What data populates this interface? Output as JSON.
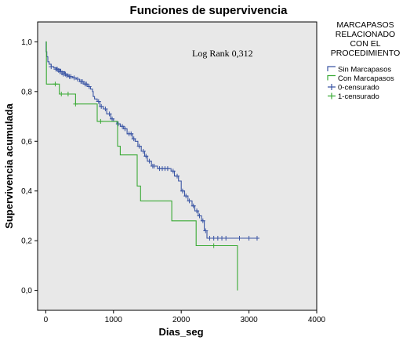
{
  "chart_data": {
    "type": "line",
    "title": "Funciones de supervivencia",
    "xlabel": "Dias_seg",
    "ylabel": "Supervivencia acumulada",
    "xlim": [
      -120,
      4000
    ],
    "ylim": [
      -0.08,
      1.08
    ],
    "xticks": [
      0,
      1000,
      2000,
      3000,
      4000
    ],
    "xtick_labels": [
      "0",
      "1000",
      "2000",
      "3000",
      "4000"
    ],
    "yticks": [
      0.0,
      0.2,
      0.4,
      0.6,
      0.8,
      1.0
    ],
    "ytick_labels": [
      "0,0",
      "0,2",
      "0,4",
      "0,6",
      "0,8",
      "1,0"
    ],
    "grid": false,
    "annotation": "Log Rank 0,312",
    "legend": {
      "position": "right",
      "title_lines": [
        "MARCAPASOS",
        "RELACIONADO",
        "CON EL",
        "PROCEDIMIENTO"
      ],
      "entries": [
        {
          "label": "Sin Marcapasos",
          "kind": "step",
          "color": "#3a55a4"
        },
        {
          "label": "Con Marcapasos",
          "kind": "step",
          "color": "#3aaa35"
        },
        {
          "label": "0-censurado",
          "kind": "cross",
          "color": "#3a55a4"
        },
        {
          "label": "1-censurado",
          "kind": "cross",
          "color": "#3aaa35"
        }
      ]
    },
    "colors": {
      "background": "#e8e8e8",
      "sin": "#3a55a4",
      "con": "#3aaa35"
    },
    "series": [
      {
        "name": "Sin Marcapasos",
        "color": "#3a55a4",
        "steps": [
          [
            0,
            1.0
          ],
          [
            5,
            0.96
          ],
          [
            15,
            0.94
          ],
          [
            30,
            0.92
          ],
          [
            50,
            0.91
          ],
          [
            80,
            0.9
          ],
          [
            120,
            0.895
          ],
          [
            160,
            0.89
          ],
          [
            220,
            0.88
          ],
          [
            280,
            0.87
          ],
          [
            330,
            0.86
          ],
          [
            400,
            0.855
          ],
          [
            450,
            0.85
          ],
          [
            500,
            0.84
          ],
          [
            560,
            0.83
          ],
          [
            620,
            0.82
          ],
          [
            660,
            0.81
          ],
          [
            690,
            0.8
          ],
          [
            700,
            0.78
          ],
          [
            720,
            0.77
          ],
          [
            760,
            0.76
          ],
          [
            800,
            0.74
          ],
          [
            850,
            0.73
          ],
          [
            900,
            0.71
          ],
          [
            960,
            0.69
          ],
          [
            1000,
            0.68
          ],
          [
            1050,
            0.67
          ],
          [
            1100,
            0.66
          ],
          [
            1150,
            0.65
          ],
          [
            1200,
            0.63
          ],
          [
            1280,
            0.61
          ],
          [
            1320,
            0.6
          ],
          [
            1360,
            0.58
          ],
          [
            1410,
            0.56
          ],
          [
            1460,
            0.54
          ],
          [
            1500,
            0.52
          ],
          [
            1560,
            0.5
          ],
          [
            1650,
            0.49
          ],
          [
            1850,
            0.48
          ],
          [
            1900,
            0.46
          ],
          [
            1960,
            0.44
          ],
          [
            2000,
            0.4
          ],
          [
            2050,
            0.38
          ],
          [
            2100,
            0.36
          ],
          [
            2160,
            0.34
          ],
          [
            2200,
            0.32
          ],
          [
            2250,
            0.3
          ],
          [
            2300,
            0.28
          ],
          [
            2340,
            0.24
          ],
          [
            2380,
            0.21
          ],
          [
            3120,
            0.21
          ]
        ],
        "censored": [
          [
            80,
            0.9
          ],
          [
            150,
            0.89
          ],
          [
            170,
            0.89
          ],
          [
            190,
            0.885
          ],
          [
            210,
            0.88
          ],
          [
            240,
            0.875
          ],
          [
            260,
            0.87
          ],
          [
            290,
            0.87
          ],
          [
            310,
            0.865
          ],
          [
            350,
            0.86
          ],
          [
            370,
            0.86
          ],
          [
            420,
            0.855
          ],
          [
            470,
            0.85
          ],
          [
            520,
            0.84
          ],
          [
            540,
            0.84
          ],
          [
            580,
            0.83
          ],
          [
            600,
            0.83
          ],
          [
            640,
            0.82
          ],
          [
            780,
            0.76
          ],
          [
            820,
            0.74
          ],
          [
            880,
            0.73
          ],
          [
            940,
            0.71
          ],
          [
            980,
            0.69
          ],
          [
            1070,
            0.67
          ],
          [
            1130,
            0.66
          ],
          [
            1170,
            0.65
          ],
          [
            1230,
            0.63
          ],
          [
            1260,
            0.63
          ],
          [
            1300,
            0.61
          ],
          [
            1380,
            0.58
          ],
          [
            1440,
            0.56
          ],
          [
            1480,
            0.54
          ],
          [
            1530,
            0.52
          ],
          [
            1580,
            0.5
          ],
          [
            1600,
            0.5
          ],
          [
            1680,
            0.49
          ],
          [
            1720,
            0.49
          ],
          [
            1760,
            0.49
          ],
          [
            1800,
            0.49
          ],
          [
            1880,
            0.48
          ],
          [
            1940,
            0.46
          ],
          [
            2020,
            0.4
          ],
          [
            2070,
            0.38
          ],
          [
            2120,
            0.36
          ],
          [
            2180,
            0.34
          ],
          [
            2230,
            0.32
          ],
          [
            2270,
            0.3
          ],
          [
            2320,
            0.28
          ],
          [
            2360,
            0.24
          ],
          [
            2420,
            0.21
          ],
          [
            2480,
            0.21
          ],
          [
            2540,
            0.21
          ],
          [
            2600,
            0.21
          ],
          [
            2660,
            0.21
          ],
          [
            2860,
            0.21
          ],
          [
            3000,
            0.21
          ],
          [
            3120,
            0.21
          ]
        ]
      },
      {
        "name": "Con Marcapasos",
        "color": "#3aaa35",
        "steps": [
          [
            0,
            1.0
          ],
          [
            10,
            0.83
          ],
          [
            200,
            0.79
          ],
          [
            440,
            0.75
          ],
          [
            760,
            0.68
          ],
          [
            1060,
            0.58
          ],
          [
            1100,
            0.545
          ],
          [
            1330,
            0.545
          ],
          [
            1350,
            0.42
          ],
          [
            1400,
            0.36
          ],
          [
            1860,
            0.28
          ],
          [
            2220,
            0.18
          ],
          [
            2800,
            0.18
          ],
          [
            2830,
            0.0
          ]
        ],
        "censored": [
          [
            140,
            0.83
          ],
          [
            230,
            0.79
          ],
          [
            330,
            0.79
          ],
          [
            440,
            0.75
          ],
          [
            810,
            0.68
          ],
          [
            2480,
            0.18
          ]
        ]
      }
    ]
  }
}
